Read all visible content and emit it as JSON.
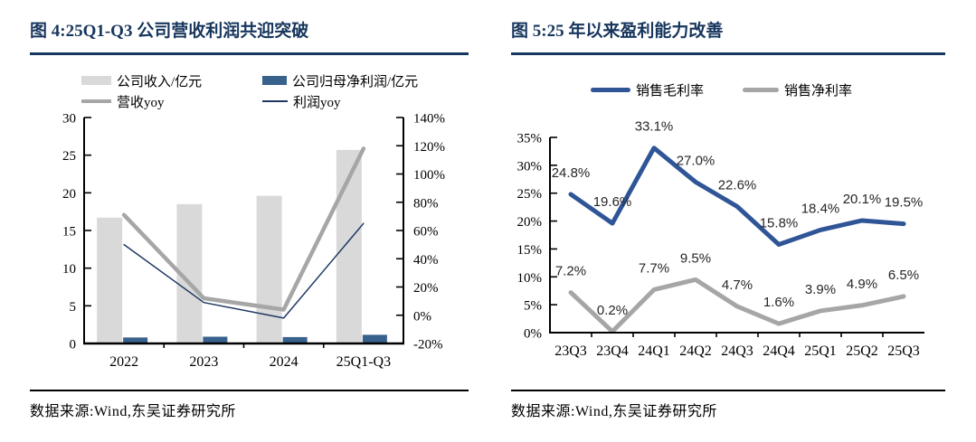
{
  "page": {
    "background": "#ffffff",
    "accent_navy": "#17365d"
  },
  "panels": [
    {
      "title": "图 4:25Q1-Q3 公司营收利润共迎突破",
      "source": "数据来源:Wind,东吴证券研究所"
    },
    {
      "title": "图 5:25 年以来盈利能力改善",
      "source": "数据来源:Wind,东吴证券研究所"
    }
  ],
  "chart_data": [
    {
      "type": "bar",
      "subtype": "combo-bar-line-dual-axis",
      "title": "图 4:25Q1-Q3 公司营收利润共迎突破",
      "categories": [
        "2022",
        "2023",
        "2024",
        "25Q1-Q3"
      ],
      "series": [
        {
          "name": "公司收入/亿元",
          "kind": "bar",
          "axis": "left",
          "color": "#d9d9d9",
          "values": [
            16.7,
            18.5,
            19.6,
            25.7
          ]
        },
        {
          "name": "公司归母净利润/亿元",
          "kind": "bar",
          "axis": "left",
          "color": "#38618c",
          "values": [
            0.8,
            0.9,
            0.85,
            1.15
          ]
        },
        {
          "name": "营收yoy",
          "kind": "line",
          "axis": "right",
          "color": "#a6a6a6",
          "stroke_width": 4.5,
          "values": [
            71,
            12,
            4,
            118
          ]
        },
        {
          "name": "利润yoy",
          "kind": "line",
          "axis": "right",
          "color": "#1f3864",
          "stroke_width": 1.5,
          "values": [
            50,
            9,
            -2,
            65
          ]
        }
      ],
      "left_axis": {
        "min": 0,
        "max": 30,
        "tick_labels": [
          "0",
          "5",
          "10",
          "15",
          "20",
          "25",
          "30"
        ]
      },
      "right_axis": {
        "min": -20,
        "max": 140,
        "tick_labels": [
          "-20%",
          "0%",
          "20%",
          "40%",
          "60%",
          "80%",
          "100%",
          "120%",
          "140%"
        ]
      },
      "grid": false,
      "legend_position": "top"
    },
    {
      "type": "line",
      "title": "图 5:25 年以来盈利能力改善",
      "categories": [
        "23Q3",
        "23Q4",
        "24Q1",
        "24Q2",
        "24Q3",
        "24Q4",
        "25Q1",
        "25Q2",
        "25Q3"
      ],
      "series": [
        {
          "name": "销售毛利率",
          "color": "#2f5597",
          "stroke_width": 5,
          "point_labels": true,
          "values": [
            24.8,
            19.6,
            33.1,
            27.0,
            22.6,
            15.8,
            18.4,
            20.1,
            19.5
          ]
        },
        {
          "name": "销售净利率",
          "color": "#a6a6a6",
          "stroke_width": 5,
          "point_labels": true,
          "values": [
            7.2,
            0.2,
            7.7,
            9.5,
            4.7,
            1.6,
            3.9,
            4.9,
            6.5
          ]
        }
      ],
      "y_axis": {
        "min": 0,
        "max": 35,
        "tick_labels": [
          "0%",
          "5%",
          "10%",
          "15%",
          "20%",
          "25%",
          "30%",
          "35%"
        ]
      },
      "label_suffix": "%",
      "grid": false,
      "legend_position": "top"
    }
  ]
}
